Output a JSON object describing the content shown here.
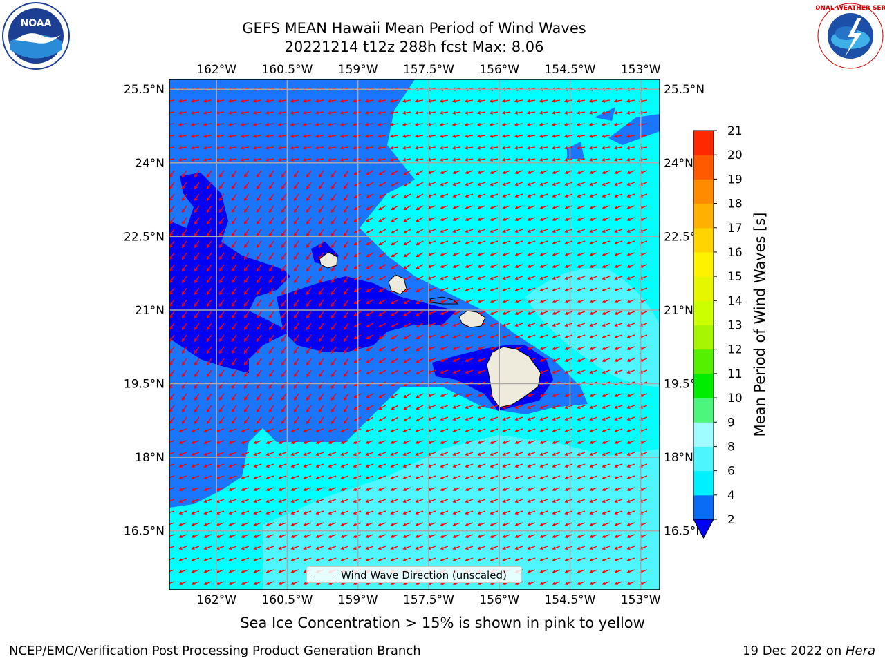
{
  "title": {
    "line1": "GEFS MEAN Hawaii Mean Period of Wind Waves",
    "line2": "20221214 t12z 288h fcst   Max: 8.06"
  },
  "chart_data": {
    "type": "heatmap",
    "title": "GEFS MEAN Hawaii Mean Period of Wind Waves",
    "subtitle": "20221214 t12z 288h fcst   Max: 8.06",
    "x_ticks": [
      "162°W",
      "160.5°W",
      "159°W",
      "157.5°W",
      "156°W",
      "154.5°W",
      "153°W"
    ],
    "y_ticks": [
      "25.5°N",
      "24°N",
      "22.5°N",
      "21°N",
      "19.5°N",
      "18°N",
      "16.5°N"
    ],
    "lon_range": [
      -163,
      -152.6
    ],
    "lat_range": [
      15.3,
      25.7
    ],
    "grid": true,
    "colorbar": {
      "label": "Mean Period of Wind Waves [s]",
      "ticks": [
        "2",
        "4",
        "6",
        "8",
        "9",
        "10",
        "11",
        "12",
        "13",
        "14",
        "15",
        "16",
        "17",
        "18",
        "19",
        "20",
        "21"
      ],
      "levels": [
        2,
        4,
        6,
        8,
        9,
        10,
        11,
        12,
        13,
        14,
        15,
        16,
        17,
        18,
        19,
        20,
        21
      ],
      "colors": [
        "#0a6cf5",
        "#00f0ff",
        "#4df5ff",
        "#9ffcff",
        "#4cf57c",
        "#00ec00",
        "#55f000",
        "#a8f500",
        "#ccff00",
        "#e6f500",
        "#fff200",
        "#ffd400",
        "#ffb000",
        "#ff8c00",
        "#ff5a00",
        "#ff2800"
      ],
      "extend_min_color": "#0000f5"
    },
    "max_value": 8.06,
    "legend": "Wind Wave Direction (unscaled)",
    "legend_position": "bottom-center",
    "colors": {
      "deep_blue": "#0000f5",
      "blue": "#1a75ff",
      "cyan": "#00ffff",
      "light_cyan": "#4ff5ff",
      "arrows": "#ff0000",
      "land": "#efebdc"
    }
  },
  "caption": "Sea Ice Concentration > 15% is shown in pink to yellow",
  "footer": {
    "left": "NCEP/EMC/Verification Post Processing Product Generation Branch",
    "right_date": "19 Dec 2022 on ",
    "right_host": "Hera"
  },
  "logos": {
    "noaa": "NOAA",
    "nws": "NATIONAL WEATHER SERVICE"
  }
}
